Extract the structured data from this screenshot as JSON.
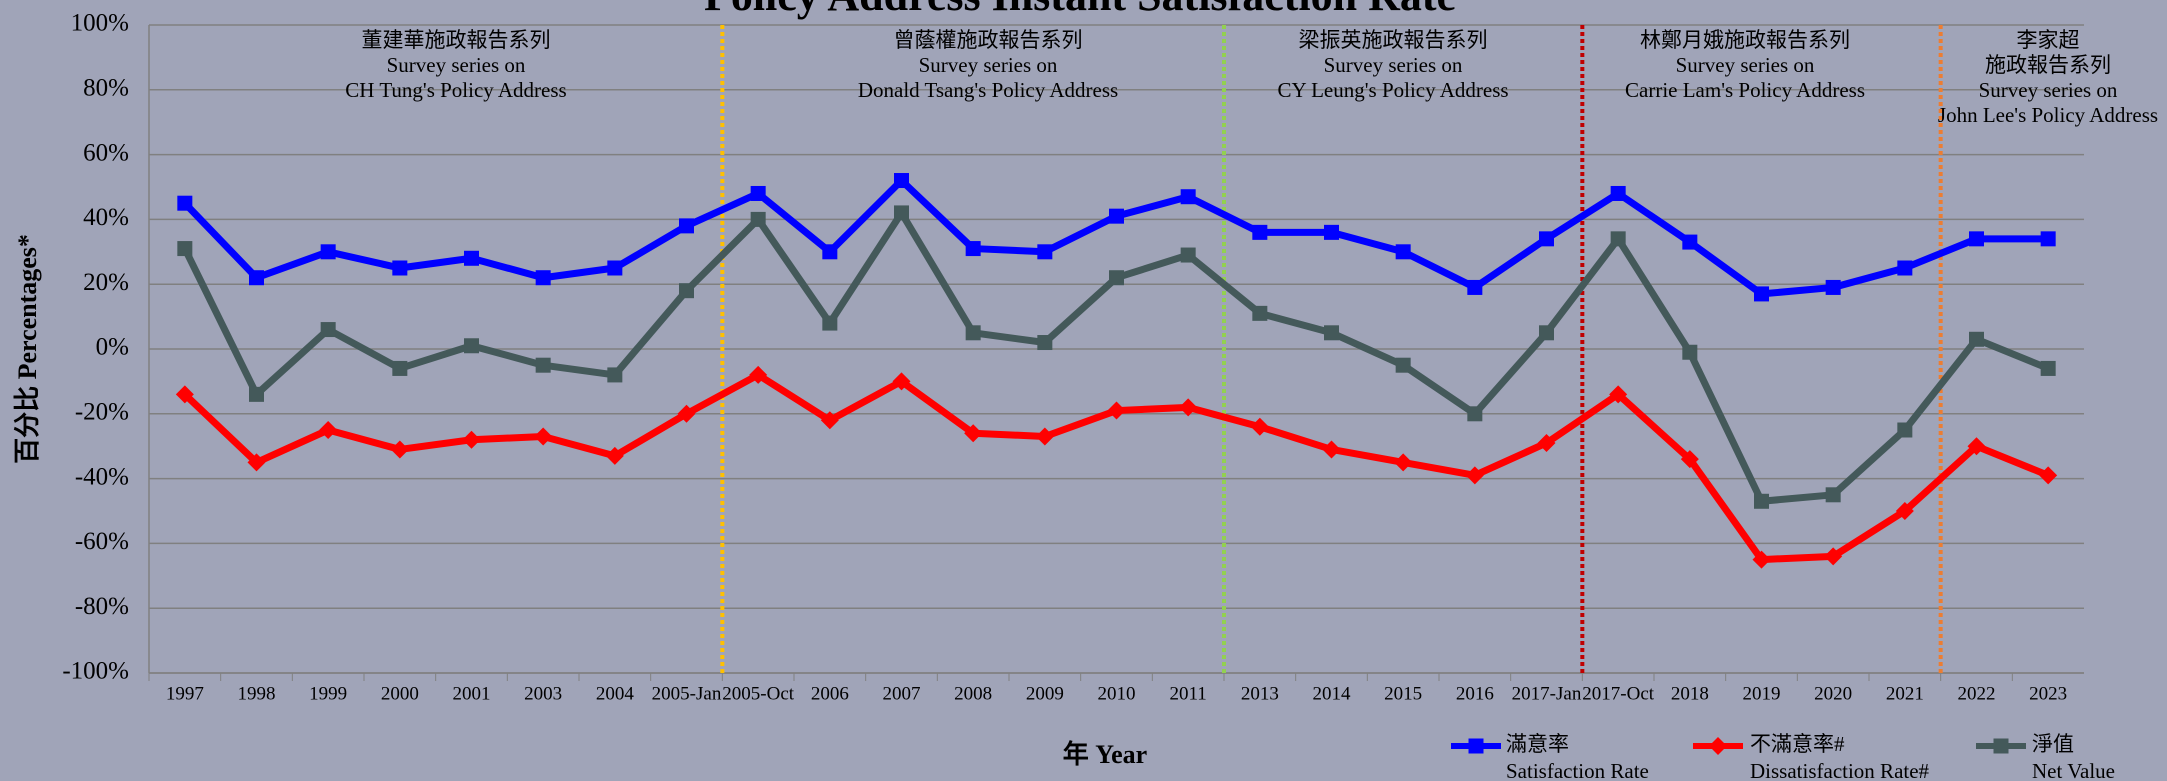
{
  "chart_data": {
    "type": "line",
    "title": "Policy Address Instant Satisfaction Rate",
    "y_label": "百分比 Percentages*",
    "x_label": "年 Year",
    "categories": [
      "1997",
      "1998",
      "1999",
      "2000",
      "2001",
      "2003",
      "2004",
      "2005-Jan",
      "2005-Oct",
      "2006",
      "2007",
      "2008",
      "2009",
      "2010",
      "2011",
      "2013",
      "2014",
      "2015",
      "2016",
      "2017-Jan",
      "2017-Oct",
      "2018",
      "2019",
      "2020",
      "2021",
      "2022",
      "2023"
    ],
    "series": [
      {
        "name": "滿意率",
        "name_en": "Satisfaction Rate",
        "color": "#0000ff",
        "marker": "square",
        "values": [
          45,
          22,
          30,
          25,
          28,
          22,
          25,
          38,
          48,
          30,
          52,
          31,
          30,
          41,
          47,
          36,
          36,
          30,
          19,
          34,
          48,
          33,
          17,
          19,
          25,
          34,
          34
        ]
      },
      {
        "name": "不滿意率#",
        "name_en": "Dissatisfaction Rate#",
        "color": "#ff0000",
        "marker": "diamond",
        "values": [
          -14,
          -35,
          -25,
          -31,
          -28,
          -27,
          -33,
          -20,
          -8,
          -22,
          -10,
          -26,
          -27,
          -19,
          -18,
          -24,
          -31,
          -35,
          -39,
          -29,
          -14,
          -34,
          -65,
          -64,
          -50,
          -30,
          -39
        ]
      },
      {
        "name": "淨值",
        "name_en": "Net Value",
        "color": "#44595a",
        "marker": "square",
        "values": [
          31,
          -14,
          6,
          -6,
          1,
          -5,
          -8,
          18,
          40,
          8,
          42,
          5,
          2,
          22,
          29,
          11,
          5,
          -5,
          -20,
          5,
          34,
          -1,
          -47,
          -45,
          -25,
          3,
          -6
        ]
      }
    ],
    "ylim": [
      -100,
      100
    ],
    "yticks": [
      {
        "value": -100,
        "label": "-100%"
      },
      {
        "value": -80,
        "label": "-80%"
      },
      {
        "value": -60,
        "label": "-60%"
      },
      {
        "value": -40,
        "label": "-40%"
      },
      {
        "value": -20,
        "label": "-20%"
      },
      {
        "value": 0,
        "label": "0%"
      },
      {
        "value": 20,
        "label": "20%"
      },
      {
        "value": 40,
        "label": "40%"
      },
      {
        "value": 60,
        "label": "60%"
      },
      {
        "value": 80,
        "label": "80%"
      },
      {
        "value": 100,
        "label": "100%"
      }
    ],
    "grid": true,
    "periods": [
      {
        "lines": [
          "董建華施政報告系列",
          "Survey series on",
          "CH Tung's Policy Address"
        ]
      },
      {
        "lines": [
          "曾蔭權施政報告系列",
          "Survey series on",
          "Donald Tsang's Policy Address"
        ],
        "divider_color": "#ffc000"
      },
      {
        "lines": [
          "梁振英施政報告系列",
          "Survey series on",
          "CY Leung's Policy Address"
        ],
        "divider_color": "#92d050"
      },
      {
        "lines": [
          "林鄭月娥施政報告系列",
          "Survey series on",
          "Carrie Lam's Policy Address"
        ],
        "divider_color": "#c00000"
      },
      {
        "lines": [
          "李家超",
          "施政報告系列",
          "Survey series on",
          "John Lee's Policy Address"
        ],
        "divider_color": "#ed7d31"
      }
    ]
  }
}
